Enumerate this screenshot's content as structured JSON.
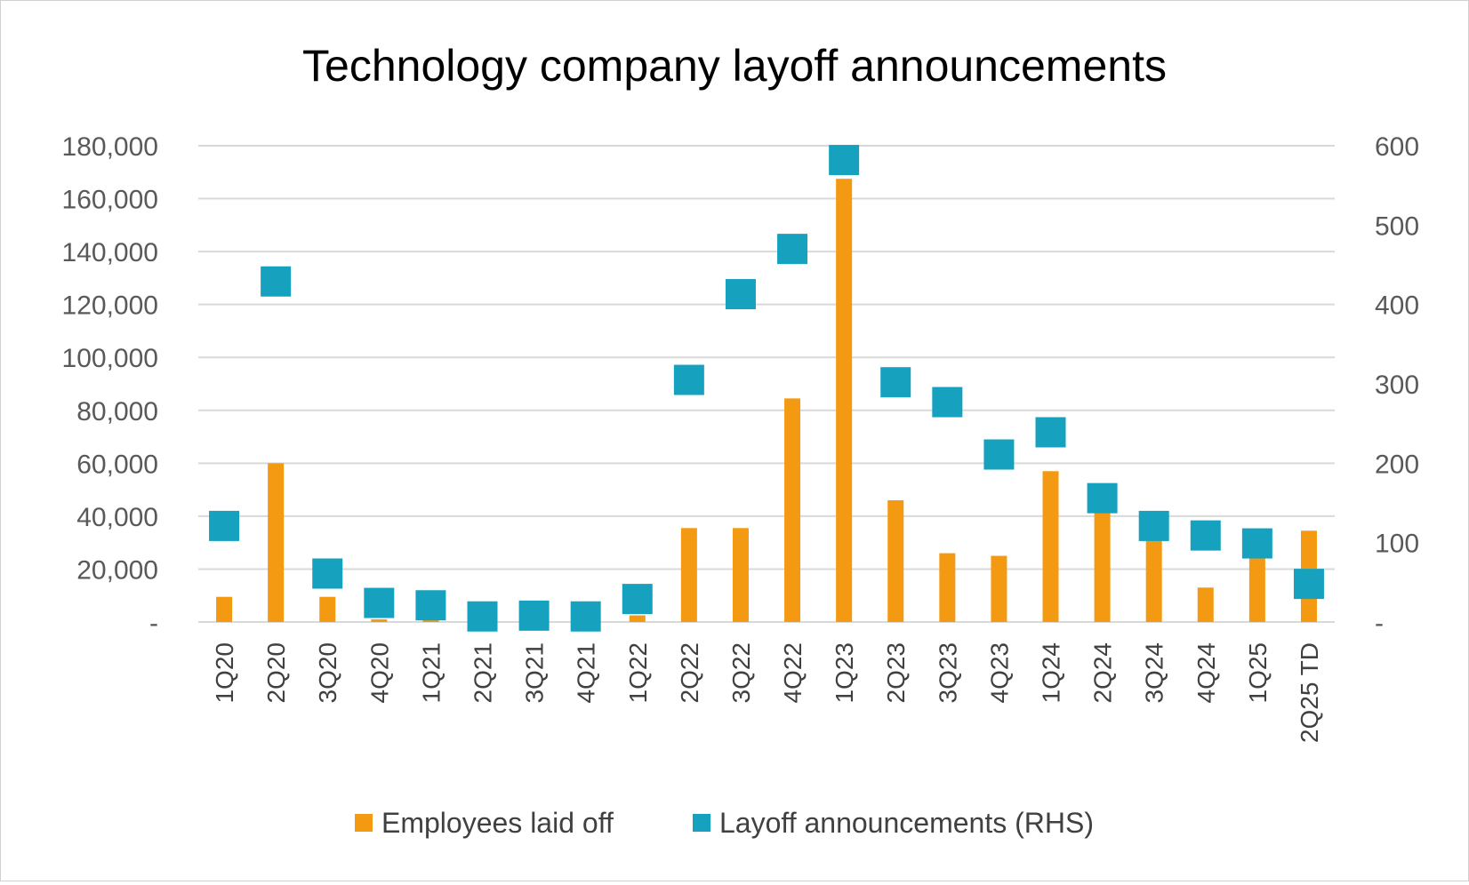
{
  "chart_data": {
    "type": "bar",
    "title": "Technology company layoff announcements",
    "categories": [
      "1Q20",
      "2Q20",
      "3Q20",
      "4Q20",
      "1Q21",
      "2Q21",
      "3Q21",
      "4Q21",
      "1Q22",
      "2Q22",
      "3Q22",
      "4Q22",
      "1Q23",
      "2Q23",
      "3Q23",
      "4Q23",
      "1Q24",
      "2Q24",
      "3Q24",
      "4Q24",
      "1Q25",
      "2Q25 TD"
    ],
    "series": [
      {
        "name": "Employees laid off",
        "type": "bar",
        "axis": "left",
        "color": "#f39a12",
        "values": [
          9500,
          60000,
          9500,
          1000,
          700,
          300,
          300,
          300,
          2500,
          35500,
          35500,
          84500,
          167500,
          46000,
          26000,
          25000,
          57000,
          42000,
          32000,
          13000,
          26500,
          34500
        ]
      },
      {
        "name": "Layoff announcements (RHS)",
        "type": "scatter",
        "axis": "right",
        "color": "#16a2bf",
        "values": [
          121,
          429,
          61,
          24,
          21,
          7,
          8,
          7,
          29,
          305,
          413,
          470,
          582,
          302,
          277,
          211,
          239,
          156,
          121,
          109,
          99,
          48
        ]
      }
    ],
    "y_left": {
      "min": 0,
      "max": 180000,
      "step": 20000,
      "tick_labels": [
        "-",
        "20,000",
        "40,000",
        "60,000",
        "80,000",
        "100,000",
        "120,000",
        "140,000",
        "160,000",
        "180,000"
      ]
    },
    "y_right": {
      "min": 0,
      "max": 600,
      "step": 100,
      "tick_labels": [
        "-",
        "100",
        "200",
        "300",
        "400",
        "500",
        "600"
      ]
    },
    "grid": true,
    "legend_position": "bottom"
  }
}
